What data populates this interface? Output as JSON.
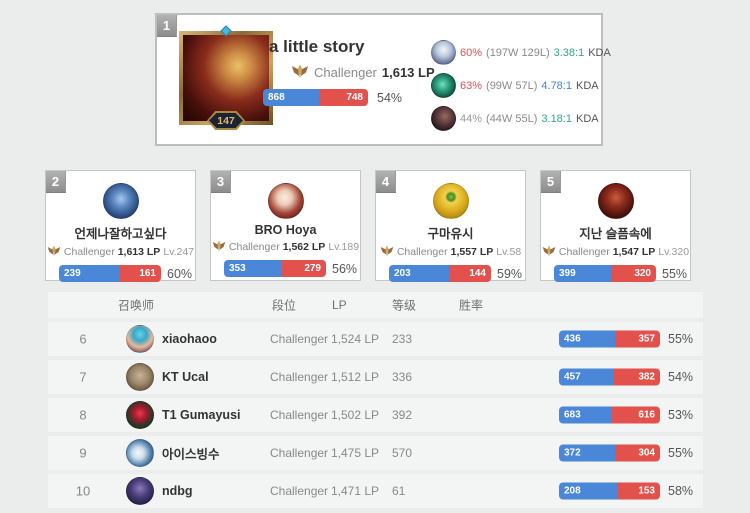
{
  "colors": {
    "bar-blue": "#4a87d8",
    "bar-red": "#e2514c"
  },
  "leader": {
    "rank": "1",
    "name": "a little story",
    "tier": "Challenger",
    "lp": "1,613 LP",
    "level": "147",
    "wins": 868,
    "losses": 748,
    "winrate": "54%",
    "champions": [
      {
        "winrate": "60%",
        "record": "(197W 129L)",
        "kda": "3.38:1",
        "kda_label": "KDA",
        "winrate_color": "#e0504e",
        "kda_color": "#2fa58c"
      },
      {
        "winrate": "63%",
        "record": "(99W 57L)",
        "kda": "4.78:1",
        "kda_label": "KDA",
        "winrate_color": "#e0504e",
        "kda_color": "#3b86dd"
      },
      {
        "winrate": "44%",
        "record": "(44W 55L)",
        "kda": "3.18:1",
        "kda_label": "KDA",
        "winrate_color": "#999999",
        "kda_color": "#2fa58c"
      }
    ]
  },
  "cards": [
    {
      "rank": "2",
      "name": "언제나잘하고싶다",
      "tier": "Challenger",
      "lp": "1,613 LP",
      "level": "Lv.247",
      "wins": 239,
      "losses": 161,
      "winrate": "60%"
    },
    {
      "rank": "3",
      "name": "BRO Hoya",
      "tier": "Challenger",
      "lp": "1,562 LP",
      "level": "Lv.189",
      "wins": 353,
      "losses": 279,
      "winrate": "56%"
    },
    {
      "rank": "4",
      "name": "구마유시",
      "tier": "Challenger",
      "lp": "1,557 LP",
      "level": "Lv.58",
      "wins": 203,
      "losses": 144,
      "winrate": "59%"
    },
    {
      "rank": "5",
      "name": "지난 슬픔속에",
      "tier": "Challenger",
      "lp": "1,547 LP",
      "level": "Lv.320",
      "wins": 399,
      "losses": 320,
      "winrate": "55%"
    }
  ],
  "table": {
    "headers": [
      "召唤师",
      "段位",
      "LP",
      "等级",
      "胜率"
    ],
    "rows": [
      {
        "rank": "6",
        "name": "xiaohaoo",
        "tier": "Challenger",
        "lp": "1,524 LP",
        "level": "233",
        "wins": 436,
        "losses": 357,
        "winrate": "55%"
      },
      {
        "rank": "7",
        "name": "KT Ucal",
        "tier": "Challenger",
        "lp": "1,512 LP",
        "level": "336",
        "wins": 457,
        "losses": 382,
        "winrate": "54%"
      },
      {
        "rank": "8",
        "name": "T1 Gumayusi",
        "tier": "Challenger",
        "lp": "1,502 LP",
        "level": "392",
        "wins": 683,
        "losses": 616,
        "winrate": "53%"
      },
      {
        "rank": "9",
        "name": "아이스빙수",
        "tier": "Challenger",
        "lp": "1,475 LP",
        "level": "570",
        "wins": 372,
        "losses": 304,
        "winrate": "55%"
      },
      {
        "rank": "10",
        "name": "ndbg",
        "tier": "Challenger",
        "lp": "1,471 LP",
        "level": "61",
        "wins": 208,
        "losses": 153,
        "winrate": "58%"
      }
    ]
  }
}
